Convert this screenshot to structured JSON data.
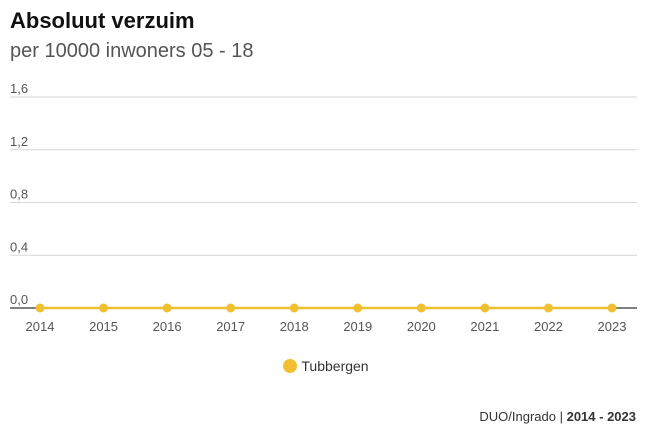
{
  "header": {
    "title": "Absoluut verzuim",
    "subtitle": "per 10000 inwoners 05 - 18"
  },
  "source": {
    "label": "DUO/Ingrado",
    "separator": " | ",
    "period": "2014 - 2023"
  },
  "chart_data": {
    "type": "line",
    "title": "Absoluut verzuim",
    "subtitle": "per 10000 inwoners 05 - 18",
    "xlabel": "",
    "ylabel": "",
    "x": [
      "2014",
      "2015",
      "2016",
      "2017",
      "2018",
      "2019",
      "2020",
      "2021",
      "2022",
      "2023"
    ],
    "ylim": [
      0,
      1.6
    ],
    "yticks": [
      "0,0",
      "0,4",
      "0,8",
      "1,2",
      "1,6"
    ],
    "grid": true,
    "legend": "bottom-center",
    "series": [
      {
        "name": "Tubbergen",
        "color": "#f0c030",
        "values": [
          0,
          0,
          0,
          0,
          0,
          0,
          0,
          0,
          0,
          0
        ]
      }
    ]
  }
}
